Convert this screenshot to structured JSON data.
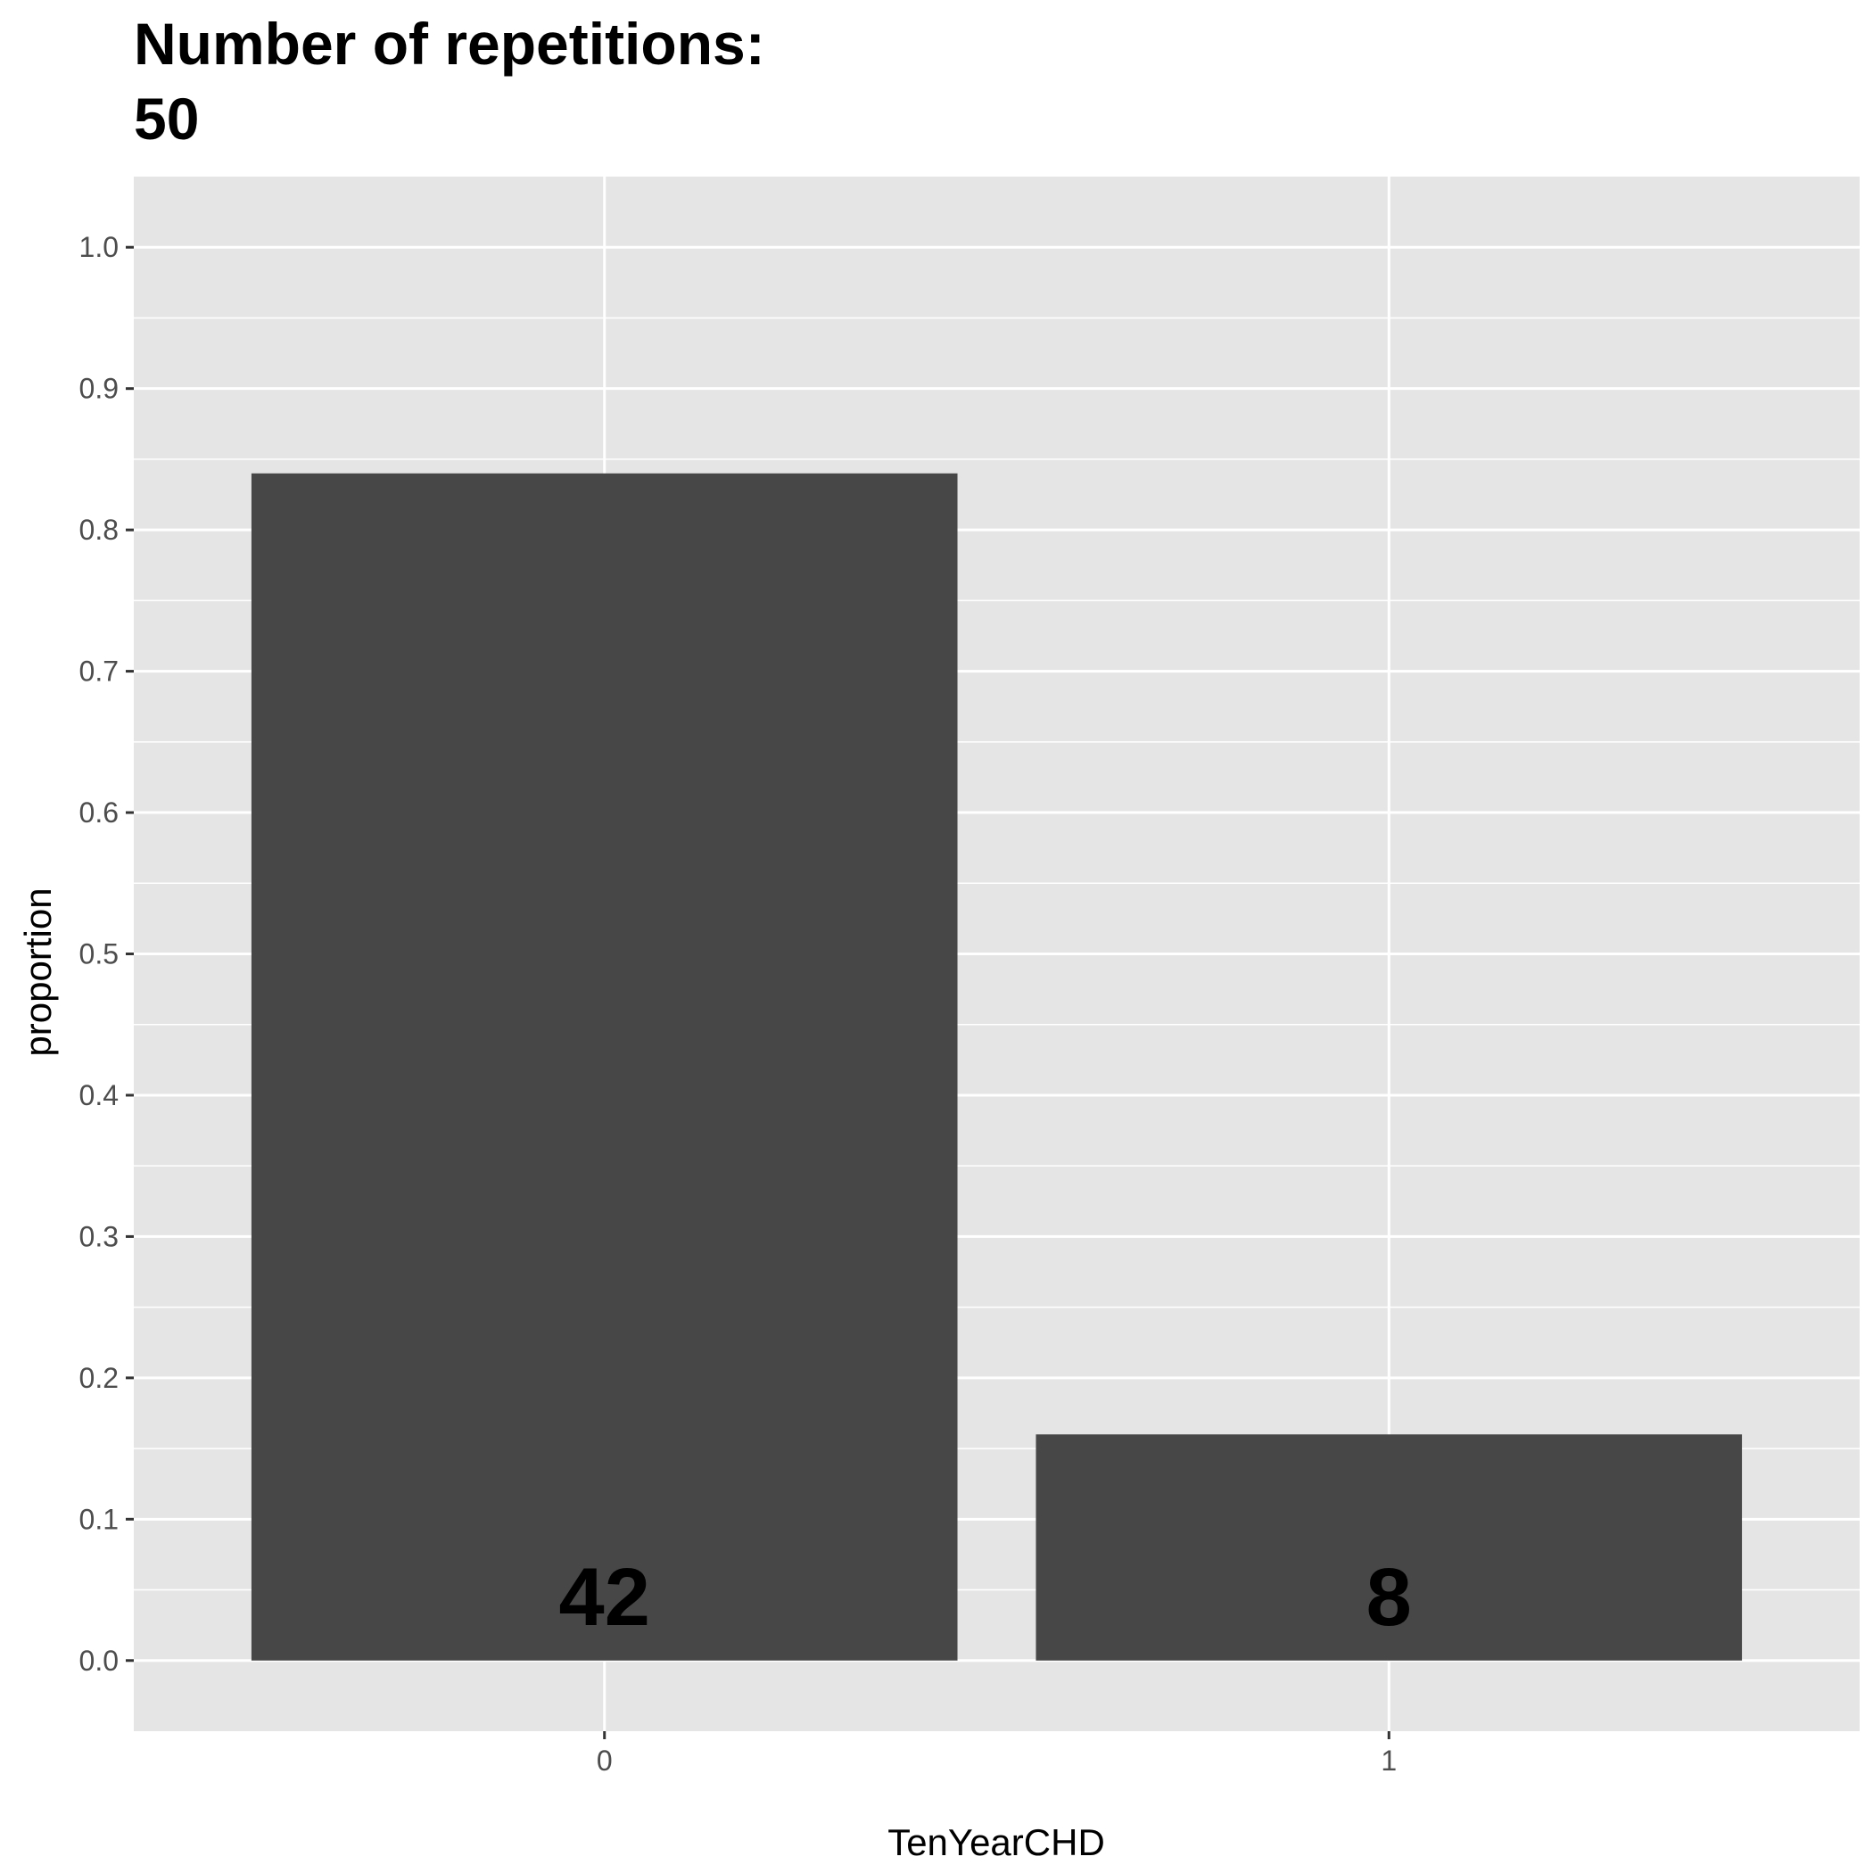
{
  "chart_data": {
    "type": "bar",
    "title": [
      "Number of repetitions:",
      "50"
    ],
    "xlabel": "TenYearCHD",
    "ylabel": "proportion",
    "categories": [
      "0",
      "1"
    ],
    "values": [
      0.84,
      0.16
    ],
    "counts": [
      "42",
      "8"
    ],
    "ylim": [
      -0.05,
      1.05
    ],
    "yticks": [
      "0.0",
      "0.1",
      "0.2",
      "0.3",
      "0.4",
      "0.5",
      "0.6",
      "0.7",
      "0.8",
      "0.9",
      "1.0"
    ],
    "grid": true,
    "legend": "none",
    "colors": {
      "bar": "#474747",
      "panel": "#e5e5e5",
      "grid": "#ffffff",
      "label": "#000000",
      "tick_text": "#4d4d4d",
      "axis_text": "#000000"
    }
  }
}
